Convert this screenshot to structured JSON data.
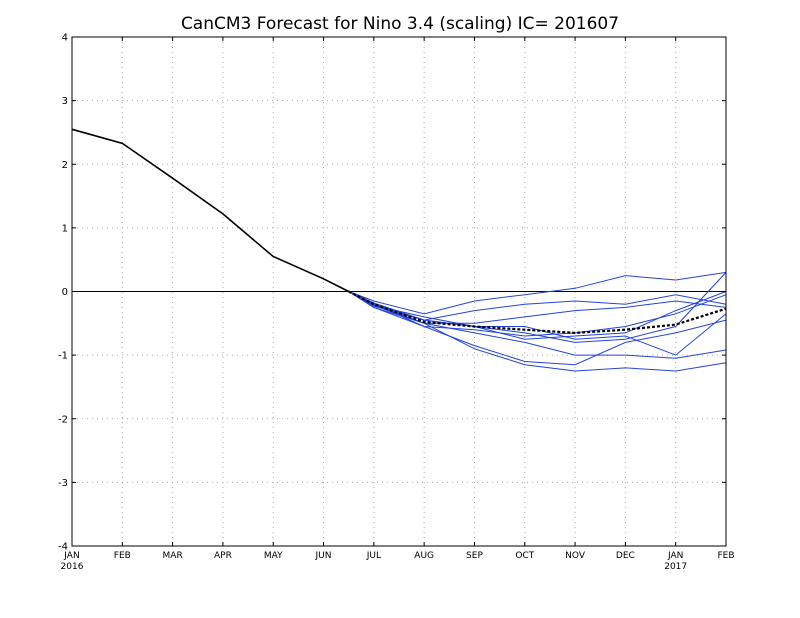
{
  "chart_data": {
    "type": "line",
    "title": "CanCM3 Forecast for Nino 3.4 (scaling) IC= 201607",
    "xlabel": "",
    "ylabel": "",
    "x_categories": [
      "JAN",
      "FEB",
      "MAR",
      "APR",
      "MAY",
      "JUN",
      "JUL",
      "AUG",
      "SEP",
      "OCT",
      "NOV",
      "DEC",
      "JAN",
      "FEB"
    ],
    "year_labels": [
      {
        "index": 0,
        "label": "2016"
      },
      {
        "index": 12,
        "label": "2017"
      }
    ],
    "ylim": [
      -4,
      4
    ],
    "yticks": [
      -4,
      -3,
      -2,
      -1,
      0,
      1,
      2,
      3,
      4
    ],
    "grid": true,
    "zero_line": true,
    "colors": {
      "observed": "#000000",
      "members": "#2244dd",
      "ensemble_mean": "#000000",
      "grid": "#aaaaaa"
    },
    "observed": {
      "x": [
        0,
        1,
        2,
        3,
        4,
        5,
        5.5
      ],
      "values": [
        2.55,
        2.33,
        1.78,
        1.22,
        0.55,
        0.2,
        0.0
      ]
    },
    "members": [
      {
        "x": [
          5.5,
          6,
          7,
          8,
          9,
          10,
          11,
          12,
          13
        ],
        "values": [
          0.0,
          -0.15,
          -0.35,
          -0.15,
          -0.05,
          0.05,
          0.25,
          0.18,
          0.3
        ]
      },
      {
        "x": [
          5.5,
          6,
          7,
          8,
          9,
          10,
          11,
          12,
          13
        ],
        "values": [
          0.0,
          -0.18,
          -0.45,
          -0.3,
          -0.2,
          -0.15,
          -0.2,
          -0.05,
          -0.2
        ]
      },
      {
        "x": [
          5.5,
          6,
          7,
          8,
          9,
          10,
          11,
          12,
          13
        ],
        "values": [
          0.0,
          -0.2,
          -0.55,
          -0.6,
          -0.7,
          -0.65,
          -0.55,
          -0.35,
          -0.05
        ]
      },
      {
        "x": [
          5.5,
          6,
          7,
          8,
          9,
          10,
          11,
          12,
          13
        ],
        "values": [
          0.0,
          -0.22,
          -0.4,
          -0.55,
          -0.75,
          -0.7,
          -0.65,
          -0.3,
          0.0
        ]
      },
      {
        "x": [
          5.5,
          6,
          7,
          8,
          9,
          10,
          11,
          12,
          13
        ],
        "values": [
          0.0,
          -0.2,
          -0.5,
          -0.5,
          -0.4,
          -0.3,
          -0.25,
          -0.15,
          -0.25
        ]
      },
      {
        "x": [
          5.5,
          6,
          7,
          8,
          9,
          10,
          11,
          12,
          13
        ],
        "values": [
          0.0,
          -0.23,
          -0.45,
          -0.55,
          -0.65,
          -0.8,
          -0.75,
          -0.55,
          0.3
        ]
      },
      {
        "x": [
          5.5,
          6,
          7,
          8,
          9,
          10,
          11,
          12,
          13
        ],
        "values": [
          0.0,
          -0.25,
          -0.55,
          -0.85,
          -1.1,
          -1.15,
          -0.8,
          -0.65,
          -0.45
        ]
      },
      {
        "x": [
          5.5,
          6,
          7,
          8,
          9,
          10,
          11,
          12,
          13
        ],
        "values": [
          0.0,
          -0.25,
          -0.5,
          -0.9,
          -1.15,
          -1.25,
          -1.2,
          -1.25,
          -1.12
        ]
      },
      {
        "x": [
          5.5,
          6,
          7,
          8,
          9,
          10,
          11,
          12,
          13
        ],
        "values": [
          0.0,
          -0.22,
          -0.5,
          -0.65,
          -0.8,
          -1.0,
          -1.0,
          -1.05,
          -0.92
        ]
      },
      {
        "x": [
          5.5,
          6,
          7,
          8,
          9,
          10,
          11,
          12,
          13
        ],
        "values": [
          0.0,
          -0.2,
          -0.45,
          -0.55,
          -0.55,
          -0.75,
          -0.7,
          -1.0,
          -0.35
        ]
      }
    ],
    "ensemble_mean": {
      "x": [
        5.5,
        6,
        7,
        8,
        9,
        10,
        11,
        12,
        13
      ],
      "values": [
        0.0,
        -0.2,
        -0.48,
        -0.55,
        -0.6,
        -0.65,
        -0.6,
        -0.52,
        -0.27
      ]
    }
  }
}
